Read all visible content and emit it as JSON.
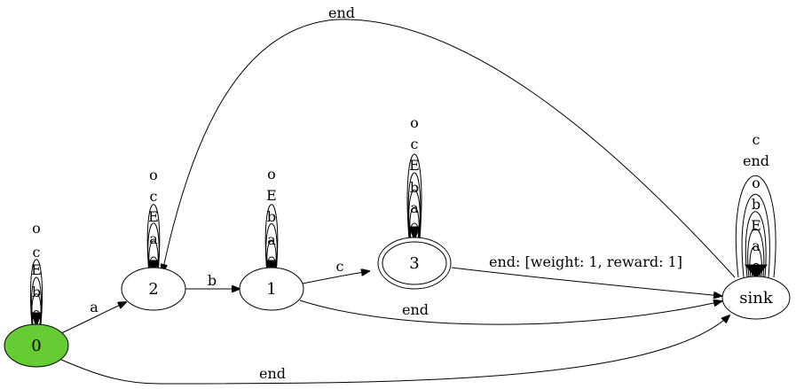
{
  "colors": {
    "start_node_fill": "#66cc33",
    "stroke": "#000000",
    "background": "#ffffff"
  },
  "nodes": {
    "n0": "0",
    "n2": "2",
    "n1": "1",
    "n3": "3",
    "sink": "sink"
  },
  "edges": {
    "n0_n2": "a",
    "n2_n1": "b",
    "n1_n3": "c",
    "n3_sink": "end: [weight: 1, reward: 1]",
    "n1_sink": "end",
    "n0_sink": "end",
    "n2_sink": "end"
  },
  "self_loops": {
    "n0": [
      "b",
      "E",
      "c",
      "o"
    ],
    "n2": [
      "a",
      "E",
      "c",
      "o"
    ],
    "n1": [
      "a",
      "b",
      "E",
      "o"
    ],
    "n3": [
      "a",
      "b",
      "E",
      "c",
      "o"
    ],
    "sink": [
      "a",
      "E",
      "b",
      "o",
      "end",
      "c"
    ]
  }
}
